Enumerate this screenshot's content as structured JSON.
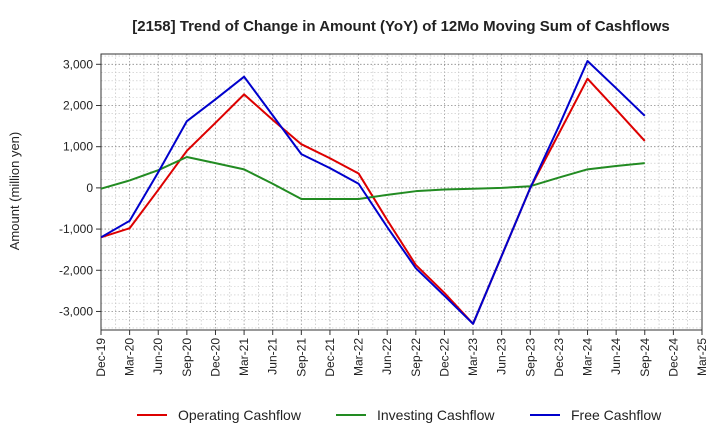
{
  "chart_data": {
    "type": "line",
    "title": "[2158]  Trend of Change in Amount (YoY) of 12Mo Moving Sum of Cashflows",
    "xlabel": "",
    "ylabel": "Amount (million yen)",
    "ylim": [
      -3450,
      3250
    ],
    "yticks": [
      -3000,
      -2000,
      -1000,
      0,
      1000,
      2000,
      3000
    ],
    "ytick_labels": [
      "-3,000",
      "-2,000",
      "-1,000",
      "0",
      "1,000",
      "2,000",
      "3,000"
    ],
    "categories": [
      "Dec-19",
      "Mar-20",
      "Jun-20",
      "Sep-20",
      "Dec-20",
      "Mar-21",
      "Jun-21",
      "Sep-21",
      "Dec-21",
      "Mar-22",
      "Jun-22",
      "Sep-22",
      "Dec-22",
      "Mar-23",
      "Jun-23",
      "Sep-23",
      "Dec-23",
      "Mar-24",
      "Jun-24",
      "Sep-24",
      "Dec-24",
      "Mar-25"
    ],
    "grid": true,
    "legend_position": "bottom",
    "series": [
      {
        "name": "Operating Cashflow",
        "color": "#dd0000",
        "values": [
          -1200,
          -980,
          -50,
          900,
          1580,
          2270,
          1650,
          1060,
          720,
          350,
          -780,
          -1870,
          -2550,
          -3300,
          -1650,
          0,
          1320,
          2650,
          1900,
          1140,
          null,
          null
        ]
      },
      {
        "name": "Investing Cashflow",
        "color": "#228b22",
        "values": [
          -20,
          180,
          430,
          750,
          600,
          450,
          100,
          -270,
          -270,
          -270,
          -170,
          -80,
          -40,
          -20,
          0,
          40,
          250,
          450,
          530,
          600,
          null,
          null
        ]
      },
      {
        "name": "Free Cashflow",
        "color": "#0000cc",
        "values": [
          -1200,
          -800,
          380,
          1620,
          2150,
          2700,
          1760,
          820,
          480,
          100,
          -950,
          -1950,
          -2620,
          -3300,
          -1650,
          0,
          1500,
          3080,
          2420,
          1750,
          null,
          null
        ]
      }
    ]
  }
}
